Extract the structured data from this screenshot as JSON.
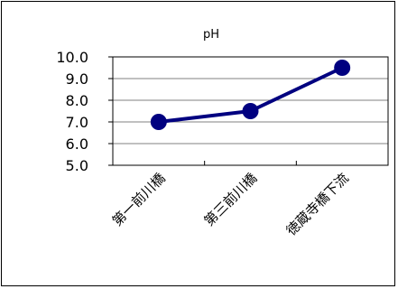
{
  "chart_data": {
    "type": "line",
    "title": "pH",
    "categories": [
      "第一前川橋",
      "第三前川橋",
      "徳蔵寺橋下流"
    ],
    "series": [
      {
        "values": [
          7.0,
          7.5,
          9.5
        ],
        "color": "#000080"
      }
    ],
    "ylim": [
      5.0,
      10.0
    ],
    "yticks": [
      "5.0",
      "6.0",
      "7.0",
      "8.0",
      "9.0",
      "10.0"
    ],
    "grid": true,
    "legend": "none",
    "plot_background": "#ffffff",
    "grid_color": "#808080"
  }
}
